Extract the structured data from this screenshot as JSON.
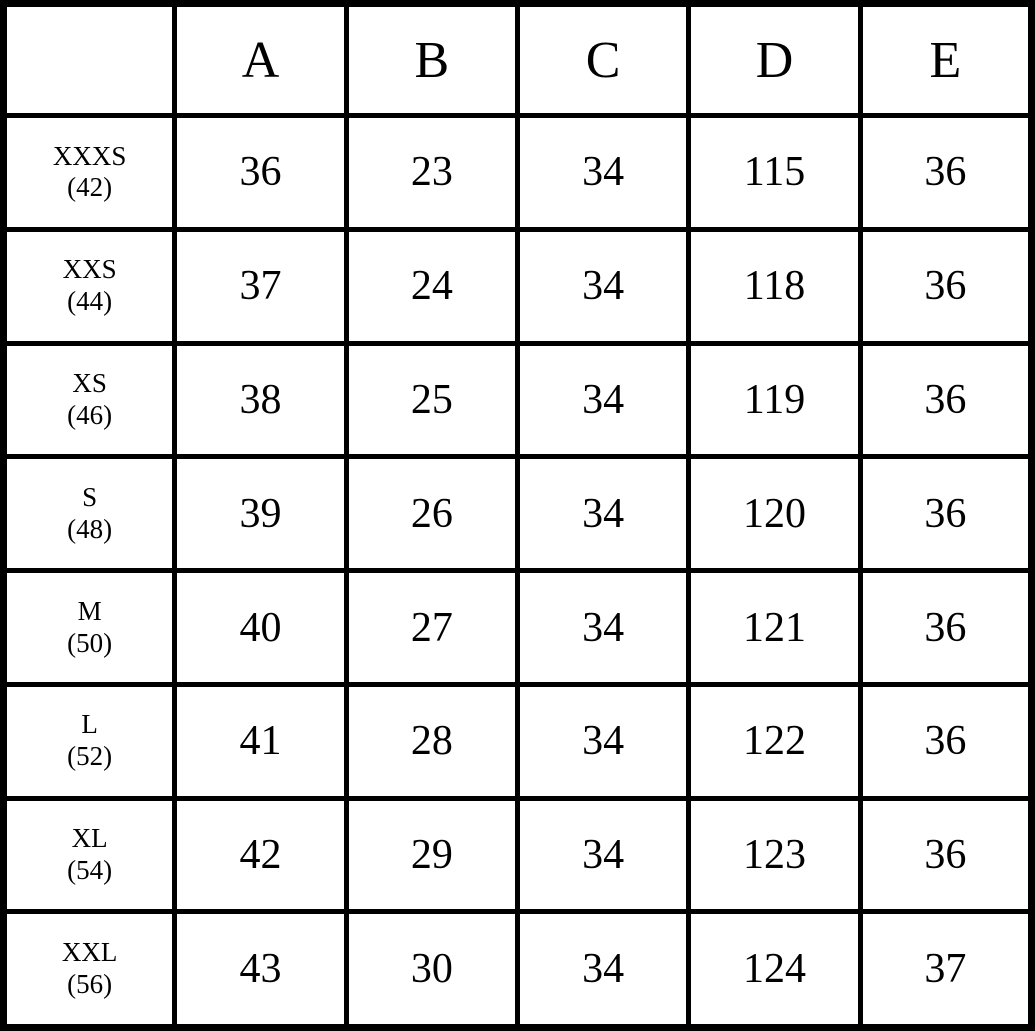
{
  "table": {
    "corner_label": "",
    "column_headers": [
      "A",
      "B",
      "C",
      "D",
      "E"
    ],
    "rows": [
      {
        "size": "XXXS",
        "number": "(42)",
        "values": [
          "36",
          "23",
          "34",
          "115",
          "36"
        ]
      },
      {
        "size": "XXS",
        "number": "(44)",
        "values": [
          "37",
          "24",
          "34",
          "118",
          "36"
        ]
      },
      {
        "size": "XS",
        "number": "(46)",
        "values": [
          "38",
          "25",
          "34",
          "119",
          "36"
        ]
      },
      {
        "size": "S",
        "number": "(48)",
        "values": [
          "39",
          "26",
          "34",
          "120",
          "36"
        ]
      },
      {
        "size": "M",
        "number": "(50)",
        "values": [
          "40",
          "27",
          "34",
          "121",
          "36"
        ]
      },
      {
        "size": "L",
        "number": "(52)",
        "values": [
          "41",
          "28",
          "34",
          "122",
          "36"
        ]
      },
      {
        "size": "XL",
        "number": "(54)",
        "values": [
          "42",
          "29",
          "34",
          "123",
          "36"
        ]
      },
      {
        "size": "XXL",
        "number": "(56)",
        "values": [
          "43",
          "30",
          "34",
          "124",
          "37"
        ]
      }
    ],
    "colors": {
      "border": "#000000",
      "background": "#ffffff",
      "text": "#000000"
    }
  }
}
